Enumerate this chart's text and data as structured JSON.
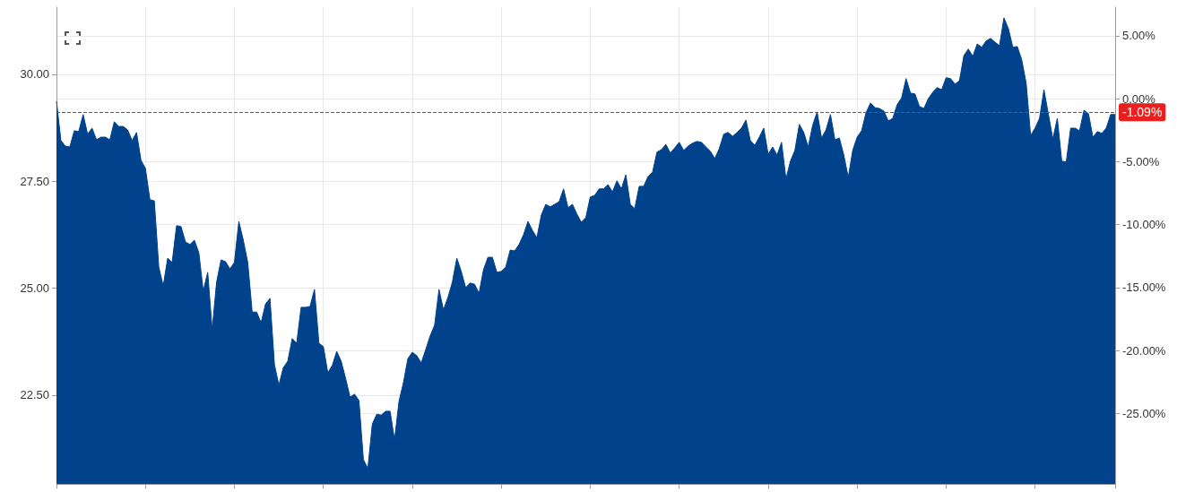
{
  "chart_data": {
    "type": "area",
    "categories": [
      null,
      null,
      null,
      null,
      null,
      null,
      null,
      null,
      null,
      null,
      null,
      null,
      null,
      null,
      null,
      null,
      null,
      null,
      null,
      null,
      null,
      null,
      null,
      null,
      null,
      null,
      null,
      null,
      null,
      null,
      null,
      null,
      null,
      null,
      null,
      null,
      null,
      null,
      null,
      null,
      null,
      null,
      null,
      null,
      null,
      null,
      null,
      null,
      null,
      null,
      null,
      null,
      null,
      null,
      null,
      null,
      null,
      null,
      null,
      null,
      null,
      null,
      null,
      null,
      null,
      null,
      null,
      null,
      null,
      null,
      null,
      null,
      null,
      null,
      null,
      null,
      null,
      null,
      null,
      null,
      null,
      null,
      null,
      null,
      null,
      null,
      null,
      null,
      null,
      null,
      null,
      null,
      null,
      null,
      null,
      null,
      null,
      null,
      null,
      null,
      null,
      null,
      null,
      null,
      null,
      null,
      null,
      null,
      null,
      null,
      null,
      null,
      null,
      null,
      null,
      null,
      null,
      null,
      null,
      null,
      null,
      null,
      null,
      null,
      null,
      null,
      null,
      null,
      null,
      null,
      null,
      null,
      null,
      null,
      null,
      null,
      null,
      null,
      null,
      null,
      null,
      null,
      null,
      null,
      null,
      null,
      null,
      null,
      null,
      null,
      null,
      null,
      null,
      null,
      null,
      null,
      null,
      null,
      null,
      null,
      null,
      null,
      null,
      null,
      null,
      null,
      null,
      null,
      null,
      null,
      null,
      null,
      null,
      null,
      null,
      null,
      null,
      null,
      null,
      null,
      null,
      null,
      null,
      null,
      null,
      null,
      null,
      null,
      null,
      null,
      null,
      null,
      null,
      null,
      null,
      null,
      null,
      null,
      null,
      null,
      null,
      null,
      null,
      null,
      null,
      null,
      null,
      null,
      null,
      null,
      null,
      null,
      null,
      null,
      null,
      null,
      null,
      null,
      null,
      null,
      null,
      null,
      null,
      null,
      null,
      null,
      null,
      null,
      null,
      null,
      null,
      null,
      null,
      null,
      null,
      null,
      null,
      null,
      null
    ],
    "series": [
      {
        "color": "#00438c",
        "values": [
          29.37,
          28.45,
          28.32,
          28.3,
          28.68,
          28.66,
          29.06,
          28.6,
          28.74,
          28.47,
          28.53,
          28.53,
          28.47,
          28.89,
          28.78,
          28.78,
          28.7,
          28.45,
          28.64,
          27.99,
          27.8,
          27.07,
          27.04,
          25.49,
          25.05,
          25.7,
          25.6,
          26.46,
          26.44,
          26.08,
          26.02,
          26.12,
          25.83,
          24.93,
          25.37,
          24.03,
          25.14,
          25.66,
          25.62,
          25.45,
          25.6,
          26.56,
          26.12,
          25.6,
          24.44,
          24.44,
          24.19,
          24.63,
          24.76,
          23.21,
          22.73,
          23.14,
          23.29,
          23.82,
          23.71,
          24.55,
          24.55,
          24.57,
          24.97,
          23.71,
          23.63,
          23.02,
          23.19,
          23.52,
          23.29,
          22.89,
          22.45,
          22.52,
          22.37,
          20.99,
          20.78,
          21.82,
          22.05,
          22.03,
          22.12,
          22.12,
          21.45,
          22.35,
          22.79,
          23.35,
          23.5,
          23.42,
          23.25,
          23.56,
          23.88,
          24.13,
          24.97,
          24.49,
          24.78,
          25.14,
          25.7,
          25.39,
          25.01,
          25.12,
          25.09,
          24.88,
          25.43,
          25.72,
          25.72,
          25.37,
          25.39,
          25.49,
          25.89,
          25.87,
          26.02,
          26.25,
          26.56,
          26.35,
          26.18,
          26.71,
          26.96,
          26.9,
          26.96,
          27.02,
          27.32,
          26.88,
          26.96,
          26.73,
          26.54,
          26.65,
          27.13,
          27.17,
          27.32,
          27.32,
          27.42,
          27.25,
          27.51,
          27.32,
          27.65,
          26.96,
          26.86,
          27.38,
          27.38,
          27.61,
          27.71,
          28.18,
          28.24,
          28.36,
          28.16,
          28.28,
          28.41,
          28.22,
          28.32,
          28.39,
          28.43,
          28.41,
          28.3,
          28.2,
          28.03,
          28.26,
          28.6,
          28.64,
          28.55,
          28.64,
          28.74,
          28.93,
          28.45,
          28.34,
          28.53,
          28.74,
          28.13,
          28.3,
          28.11,
          28.41,
          27.55,
          27.97,
          28.22,
          28.83,
          28.64,
          28.3,
          28.81,
          29.12,
          28.51,
          28.7,
          29.06,
          28.47,
          28.51,
          28.11,
          27.59,
          28.22,
          28.53,
          28.68,
          29.1,
          29.33,
          29.22,
          29.2,
          29.14,
          28.91,
          28.97,
          29.29,
          29.45,
          29.9,
          29.56,
          29.54,
          29.25,
          29.2,
          29.43,
          29.58,
          29.69,
          29.64,
          29.92,
          29.9,
          29.77,
          29.85,
          30.44,
          30.59,
          30.42,
          30.71,
          30.63,
          30.78,
          30.84,
          30.75,
          30.67,
          31.32,
          31.07,
          30.63,
          30.65,
          30.34,
          29.79,
          28.57,
          28.74,
          28.97,
          29.64,
          29.06,
          28.49,
          28.97,
          27.97,
          27.95,
          28.74,
          28.74,
          28.68,
          29.16,
          29.08,
          28.53,
          28.66,
          28.62,
          28.74,
          29.06,
          29.06
        ]
      }
    ],
    "ylim": [
      20.42,
      31.57
    ],
    "yticks": [
      {
        "value": 22.5,
        "label": "22.50"
      },
      {
        "value": 25,
        "label": "25.00"
      },
      {
        "value": 27.5,
        "label": "27.50"
      },
      {
        "value": 30,
        "label": "30.00"
      }
    ],
    "y2lim": [
      -30.6,
      7.26
    ],
    "y2ticks": [
      {
        "value": -25,
        "label": "-25.00%"
      },
      {
        "value": -20,
        "label": "-20.00%"
      },
      {
        "value": -15,
        "label": "-15.00%"
      },
      {
        "value": -10,
        "label": "-10.00%"
      },
      {
        "value": -5,
        "label": "-5.00%"
      },
      {
        "value": 0,
        "label": "0.00%"
      },
      {
        "value": 5,
        "label": "5.00%"
      }
    ],
    "ref_lines": [
      {
        "axis": "y2",
        "value": -1.09,
        "label": "-1.09%",
        "color": "#e8211f",
        "line_style": "dashed"
      }
    ],
    "grid": true,
    "marker": "none"
  }
}
